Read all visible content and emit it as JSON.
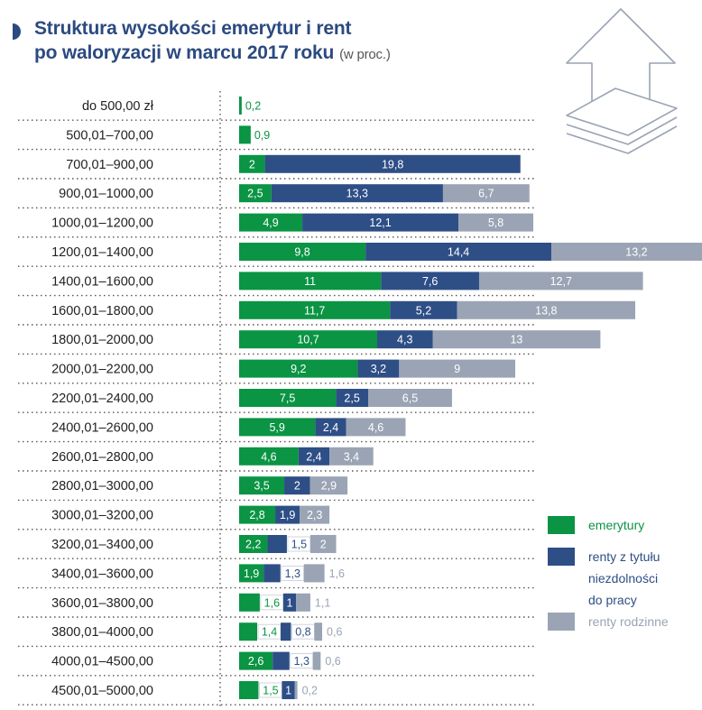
{
  "title": {
    "line1": "Struktura wysokości emerytur i rent",
    "line2": "po waloryzacji w marcu 2017 roku",
    "unit": "(w proc.)"
  },
  "colors": {
    "emerytury": "#0a9444",
    "renty_niezdolnosci": "#2e4e86",
    "renty_rodzinne": "#9aa4b4",
    "title": "#2b4a80",
    "gridline": "#444444"
  },
  "icons": [
    "bullet-icon",
    "arrow-up-stack-icon"
  ],
  "chart_data": {
    "type": "bar",
    "orientation": "horizontal",
    "stacked": true,
    "title": "Struktura wysokości emerytur i rent po waloryzacji w marcu 2017 roku",
    "unit": "(w proc.)",
    "categories": [
      "do 500,00 zł",
      "500,01–700,00",
      "700,01–900,00",
      "900,01–1000,00",
      "1000,01–1200,00",
      "1200,01–1400,00",
      "1400,01–1600,00",
      "1600,01–1800,00",
      "1800,01–2000,00",
      "2000,01–2200,00",
      "2200,01–2400,00",
      "2400,01–2600,00",
      "2600,01–2800,00",
      "2800,01–3000,00",
      "3000,01–3200,00",
      "3200,01–3400,00",
      "3400,01–3600,00",
      "3600,01–3800,00",
      "3800,01–4000,00",
      "4000,01–4500,00",
      "4500,01–5000,00"
    ],
    "series": [
      {
        "name": "emerytury",
        "values": [
          0.2,
          0.9,
          2,
          2.5,
          4.9,
          9.8,
          11,
          11.7,
          10.7,
          9.2,
          7.5,
          5.9,
          4.6,
          3.5,
          2.8,
          2.2,
          1.9,
          1.6,
          1.4,
          2.6,
          1.5
        ],
        "labels": [
          "0,2",
          "0,9",
          "2",
          "2,5",
          "4,9",
          "9,8",
          "11",
          "11,7",
          "10,7",
          "9,2",
          "7,5",
          "5,9",
          "4,6",
          "3,5",
          "2,8",
          "2,2",
          "1,9",
          "1,6",
          "1,4",
          "2,6",
          "1,5"
        ]
      },
      {
        "name": "renty z tytułu niezdolności do pracy",
        "legend_lines": [
          "renty z tytułu",
          "niezdolności",
          "do pracy"
        ],
        "values": [
          null,
          null,
          19.8,
          13.3,
          12.1,
          14.4,
          7.6,
          5.2,
          4.3,
          3.2,
          2.5,
          2.4,
          2.4,
          2,
          1.9,
          1.5,
          1.3,
          1,
          0.8,
          1.3,
          1
        ],
        "labels": [
          null,
          null,
          "19,8",
          "13,3",
          "12,1",
          "14,4",
          "7,6",
          "5,2",
          "4,3",
          "3,2",
          "2,5",
          "2,4",
          "2,4",
          "2",
          "1,9",
          "1,5",
          "1,3",
          "1",
          "0,8",
          "1,3",
          "1"
        ]
      },
      {
        "name": "renty rodzinne",
        "values": [
          null,
          null,
          null,
          6.7,
          5.8,
          13.2,
          12.7,
          13.8,
          13,
          9,
          6.5,
          4.6,
          3.4,
          2.9,
          2.3,
          2,
          1.6,
          1.1,
          0.6,
          0.6,
          0.2
        ],
        "labels": [
          null,
          null,
          null,
          "6,7",
          "5,8",
          "13,2",
          "12,7",
          "13,8",
          "13",
          "9",
          "6,5",
          "4,6",
          "3,4",
          "2,9",
          "2,3",
          "2",
          "1,6",
          "1,1",
          "0,6",
          "0,6",
          "0,2"
        ]
      }
    ],
    "legend_position": "right",
    "grid": true
  }
}
